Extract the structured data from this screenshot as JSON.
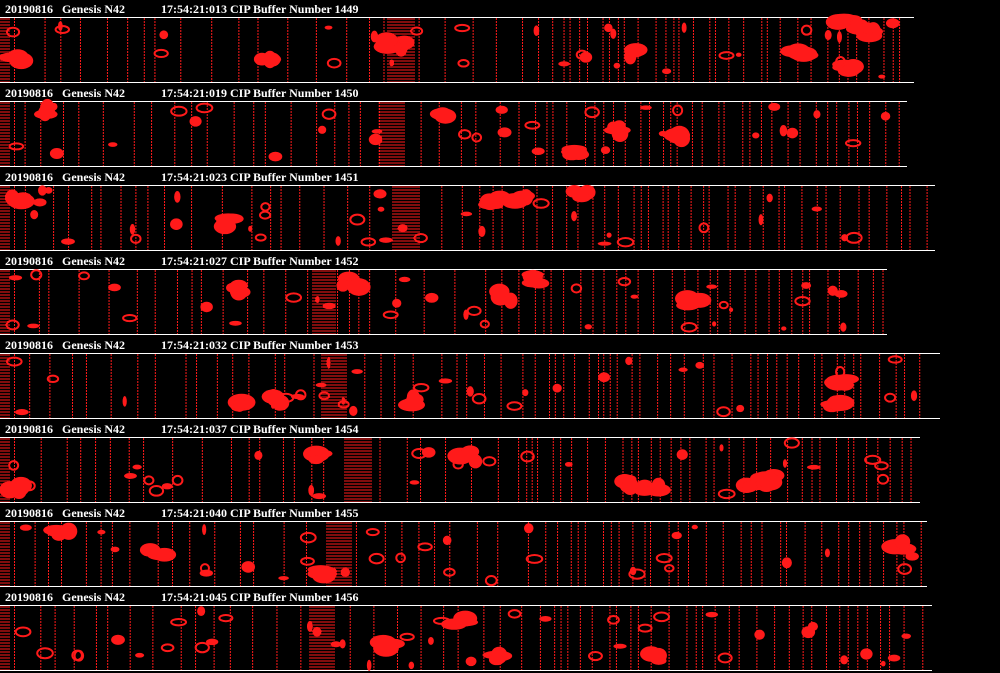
{
  "buffers": [
    {
      "date": "20190816",
      "aircraft": "Genesis N42",
      "time": "17:54:21:013 CIP Buffer Number 1449"
    },
    {
      "date": "20190816",
      "aircraft": "Genesis N42",
      "time": "17:54:21:019 CIP Buffer Number 1450"
    },
    {
      "date": "20190816",
      "aircraft": "Genesis N42",
      "time": "17:54:21:023 CIP Buffer Number 1451"
    },
    {
      "date": "20190816",
      "aircraft": "Genesis N42",
      "time": "17:54:21:027 CIP Buffer Number 1452"
    },
    {
      "date": "20190816",
      "aircraft": "Genesis N42",
      "time": "17:54:21:032 CIP Buffer Number 1453"
    },
    {
      "date": "20190816",
      "aircraft": "Genesis N42",
      "time": "17:54:21:037 CIP Buffer Number 1454"
    },
    {
      "date": "20190816",
      "aircraft": "Genesis N42",
      "time": "17:54:21:040 CIP Buffer Number 1455"
    },
    {
      "date": "20190816",
      "aircraft": "Genesis N42",
      "time": "17:54:21:045 CIP Buffer Number 1456"
    }
  ]
}
